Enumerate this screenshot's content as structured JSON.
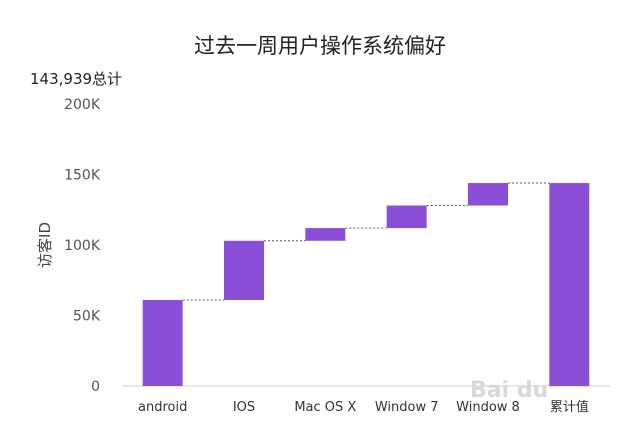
{
  "chart_data": {
    "type": "waterfall",
    "title": "过去一周用户操作系统偏好",
    "subtitle": "143,939总计",
    "ylabel": "访客ID",
    "xlabel": "",
    "categories": [
      "android",
      "IOS",
      "Mac OS X",
      "Window 7",
      "Window 8",
      "累计值"
    ],
    "increments": [
      61000,
      42000,
      9000,
      16000,
      16000,
      null
    ],
    "total": 143939,
    "bars": [
      {
        "label": "android",
        "start": 0,
        "end": 61000
      },
      {
        "label": "IOS",
        "start": 61000,
        "end": 103000
      },
      {
        "label": "Mac OS X",
        "start": 103000,
        "end": 112000
      },
      {
        "label": "Window 7",
        "start": 112000,
        "end": 128000
      },
      {
        "label": "Window 8",
        "start": 128000,
        "end": 143939
      },
      {
        "label": "累计值",
        "start": 0,
        "end": 143939
      }
    ],
    "yticks": [
      0,
      50000,
      100000,
      150000,
      200000
    ],
    "ytick_labels": [
      "0",
      "50K",
      "100K",
      "150K",
      "200K"
    ],
    "ylim": [
      0,
      200000
    ],
    "bar_color": "#8a4fd6",
    "grid": false
  },
  "watermark": "Bai du"
}
